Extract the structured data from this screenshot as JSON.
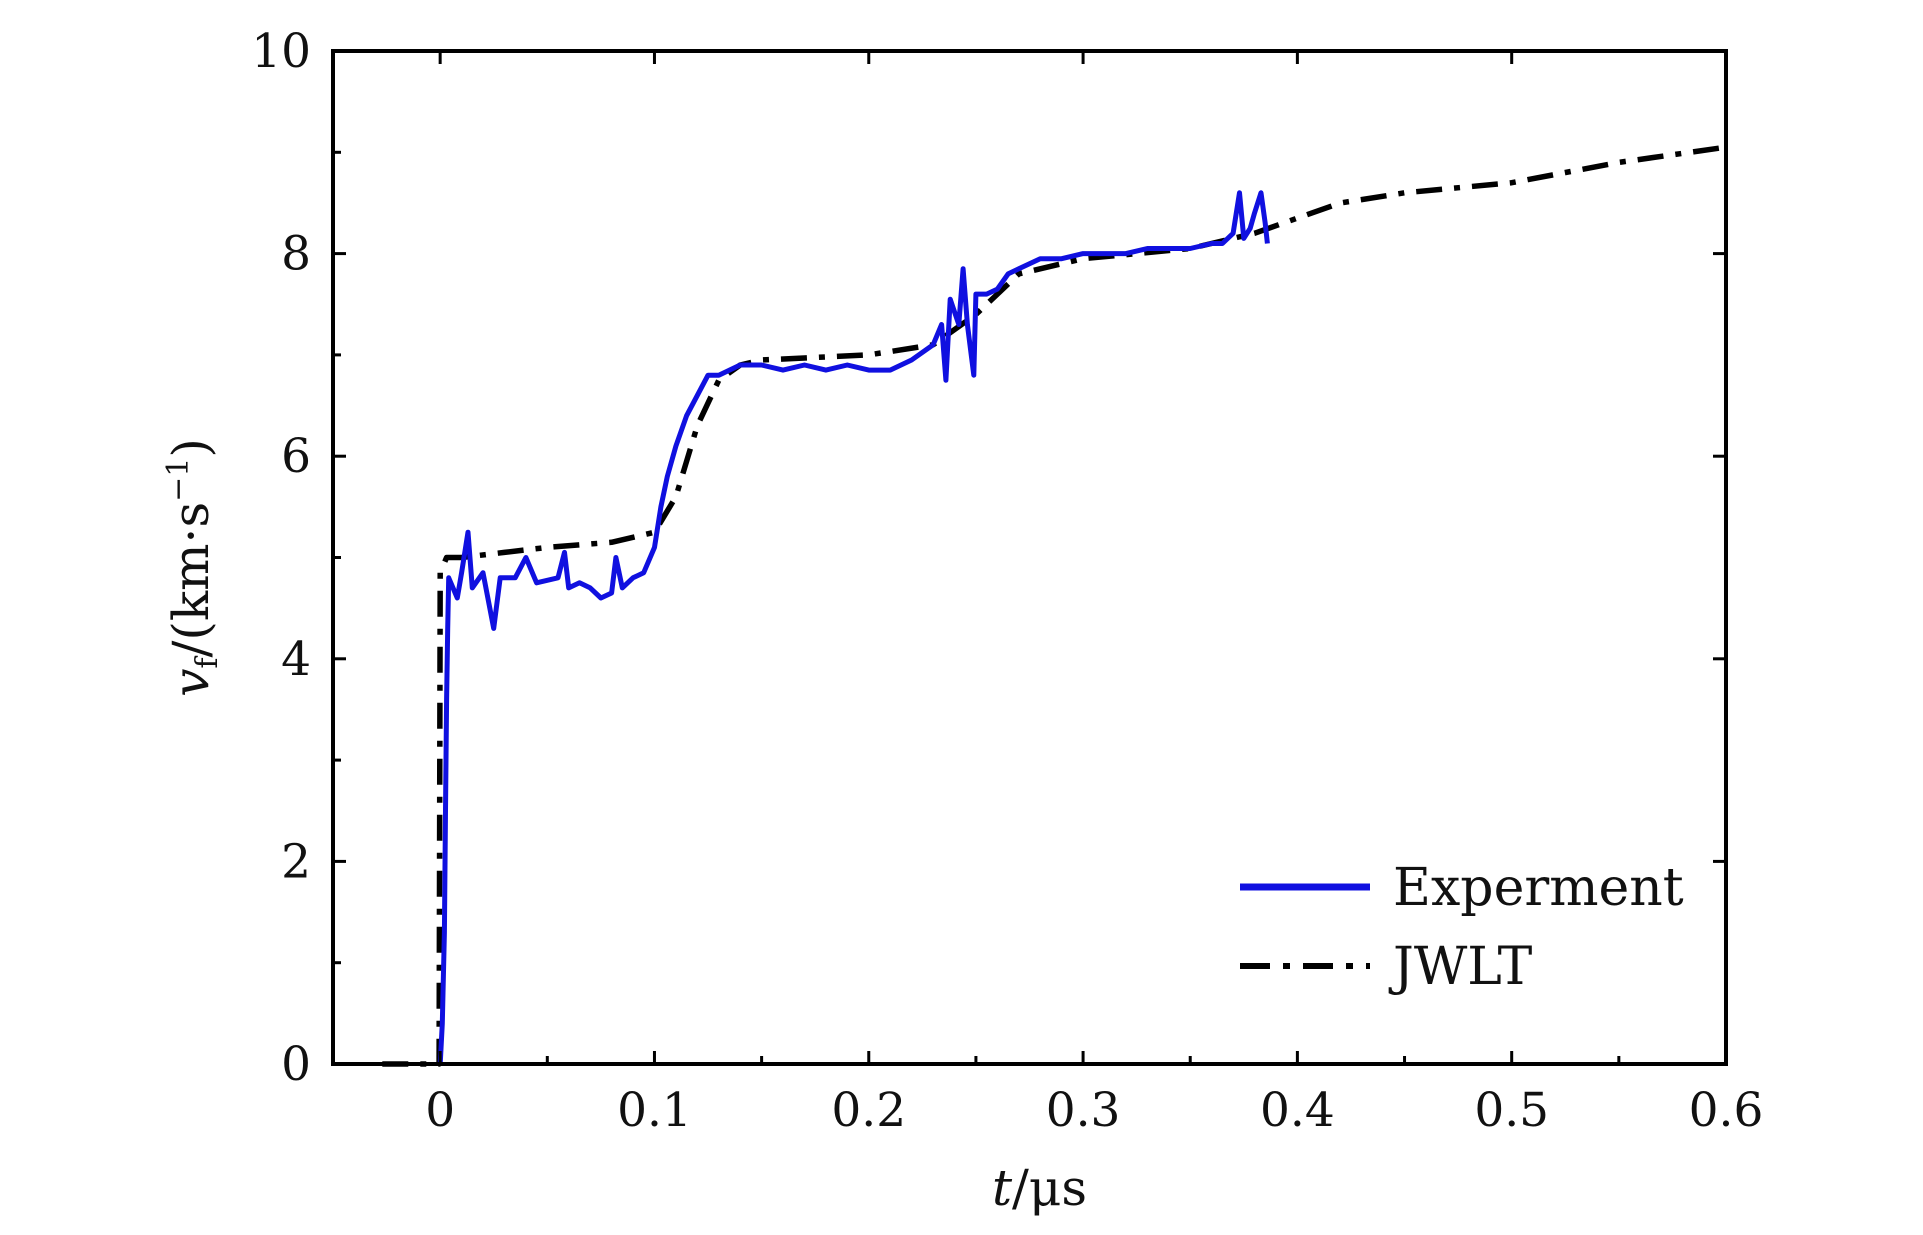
{
  "chart_data": {
    "type": "line",
    "title": "",
    "xlabel": {
      "var": "t",
      "unit": "/μs"
    },
    "ylabel": {
      "var": "v",
      "sub": "f",
      "unit": "/(km·s",
      "sup": "−1",
      "close": ")"
    },
    "xlim": [
      -0.05,
      0.6
    ],
    "ylim": [
      0,
      10
    ],
    "xticks": [
      "0",
      "0.1",
      "0.2",
      "0.3",
      "0.4",
      "0.5",
      "0.6"
    ],
    "yticks": [
      "0",
      "2",
      "4",
      "6",
      "8",
      "10"
    ],
    "grid": false,
    "legend_position": "bottom-right",
    "series": [
      {
        "name": "Experment",
        "color": "#1010e0",
        "style": "solid",
        "points": [
          [
            0.0,
            0.0
          ],
          [
            0.001,
            0.4
          ],
          [
            0.002,
            1.3
          ],
          [
            0.0025,
            2.5
          ],
          [
            0.003,
            3.6
          ],
          [
            0.0035,
            4.3
          ],
          [
            0.004,
            4.8
          ],
          [
            0.008,
            4.6
          ],
          [
            0.01,
            4.85
          ],
          [
            0.013,
            5.25
          ],
          [
            0.015,
            4.7
          ],
          [
            0.02,
            4.85
          ],
          [
            0.025,
            4.3
          ],
          [
            0.028,
            4.8
          ],
          [
            0.035,
            4.8
          ],
          [
            0.04,
            5.0
          ],
          [
            0.045,
            4.75
          ],
          [
            0.055,
            4.8
          ],
          [
            0.058,
            5.05
          ],
          [
            0.06,
            4.7
          ],
          [
            0.065,
            4.75
          ],
          [
            0.07,
            4.7
          ],
          [
            0.075,
            4.6
          ],
          [
            0.08,
            4.65
          ],
          [
            0.082,
            5.0
          ],
          [
            0.085,
            4.7
          ],
          [
            0.09,
            4.8
          ],
          [
            0.095,
            4.85
          ],
          [
            0.1,
            5.1
          ],
          [
            0.103,
            5.5
          ],
          [
            0.106,
            5.8
          ],
          [
            0.11,
            6.1
          ],
          [
            0.115,
            6.4
          ],
          [
            0.12,
            6.6
          ],
          [
            0.125,
            6.8
          ],
          [
            0.13,
            6.8
          ],
          [
            0.14,
            6.9
          ],
          [
            0.15,
            6.9
          ],
          [
            0.16,
            6.85
          ],
          [
            0.17,
            6.9
          ],
          [
            0.18,
            6.85
          ],
          [
            0.19,
            6.9
          ],
          [
            0.2,
            6.85
          ],
          [
            0.21,
            6.85
          ],
          [
            0.22,
            6.95
          ],
          [
            0.23,
            7.1
          ],
          [
            0.234,
            7.3
          ],
          [
            0.236,
            6.75
          ],
          [
            0.238,
            7.55
          ],
          [
            0.242,
            7.3
          ],
          [
            0.244,
            7.85
          ],
          [
            0.246,
            7.3
          ],
          [
            0.249,
            6.8
          ],
          [
            0.25,
            7.6
          ],
          [
            0.255,
            7.6
          ],
          [
            0.26,
            7.65
          ],
          [
            0.265,
            7.8
          ],
          [
            0.27,
            7.85
          ],
          [
            0.28,
            7.95
          ],
          [
            0.29,
            7.95
          ],
          [
            0.3,
            8.0
          ],
          [
            0.31,
            8.0
          ],
          [
            0.32,
            8.0
          ],
          [
            0.33,
            8.05
          ],
          [
            0.34,
            8.05
          ],
          [
            0.35,
            8.05
          ],
          [
            0.36,
            8.1
          ],
          [
            0.365,
            8.1
          ],
          [
            0.37,
            8.2
          ],
          [
            0.373,
            8.6
          ],
          [
            0.375,
            8.15
          ],
          [
            0.378,
            8.25
          ],
          [
            0.38,
            8.4
          ],
          [
            0.383,
            8.6
          ],
          [
            0.385,
            8.3
          ],
          [
            0.386,
            8.1
          ]
        ]
      },
      {
        "name": "JWLT",
        "color": "#000000",
        "style": "dashdot",
        "points": [
          [
            -0.027,
            0.0
          ],
          [
            -0.0005,
            0.0
          ],
          [
            0.0,
            4.85
          ],
          [
            0.003,
            5.0
          ],
          [
            0.01,
            5.0
          ],
          [
            0.03,
            5.05
          ],
          [
            0.05,
            5.1
          ],
          [
            0.08,
            5.15
          ],
          [
            0.1,
            5.25
          ],
          [
            0.11,
            5.6
          ],
          [
            0.12,
            6.3
          ],
          [
            0.13,
            6.75
          ],
          [
            0.14,
            6.9
          ],
          [
            0.15,
            6.95
          ],
          [
            0.2,
            7.0
          ],
          [
            0.23,
            7.1
          ],
          [
            0.25,
            7.4
          ],
          [
            0.27,
            7.8
          ],
          [
            0.3,
            7.95
          ],
          [
            0.35,
            8.05
          ],
          [
            0.38,
            8.2
          ],
          [
            0.4,
            8.35
          ],
          [
            0.42,
            8.5
          ],
          [
            0.45,
            8.6
          ],
          [
            0.5,
            8.7
          ],
          [
            0.55,
            8.9
          ],
          [
            0.6,
            9.05
          ]
        ]
      }
    ]
  }
}
